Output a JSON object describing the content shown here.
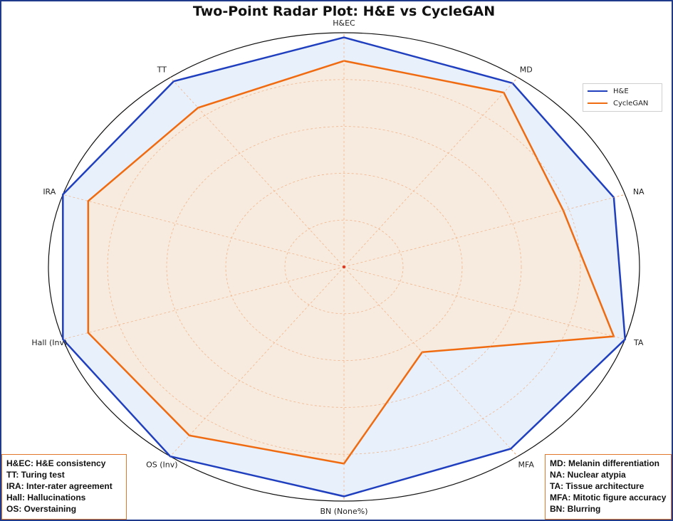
{
  "chart_data": {
    "type": "radar",
    "title": "Two-Point Radar Plot: H&E vs CycleGAN",
    "axes": [
      "H&EC",
      "MD",
      "NA",
      "TA",
      "MFA",
      "BN (None%)",
      "OS (Inv)",
      "Hall (Inv)",
      "IRA",
      "TT"
    ],
    "rlim": [
      0,
      1
    ],
    "ring_count": 5,
    "grid": true,
    "legend_position": "top-right",
    "series": [
      {
        "name": "H&E",
        "color": "#1f3fbf",
        "fill": "#e8f1fb",
        "values": [
          0.98,
          0.97,
          0.96,
          1.0,
          0.96,
          0.98,
          1.0,
          1.0,
          1.0,
          0.98
        ]
      },
      {
        "name": "CycleGAN",
        "color": "#f06a10",
        "fill": "#f7ebdf",
        "values": [
          0.88,
          0.92,
          0.78,
          0.96,
          0.45,
          0.84,
          0.89,
          0.91,
          0.91,
          0.84
        ]
      }
    ]
  },
  "notes_left": [
    "H&EC: H&E consistency",
    "TT: Turing test",
    "IRA: Inter-rater agreement",
    "Hall: Hallucinations",
    "OS: Overstaining"
  ],
  "notes_right": [
    "MD: Melanin differentiation",
    "NA: Nuclear atypia",
    "TA: Tissue architecture",
    "MFA: Mitotic figure accuracy",
    "BN: Blurring"
  ]
}
